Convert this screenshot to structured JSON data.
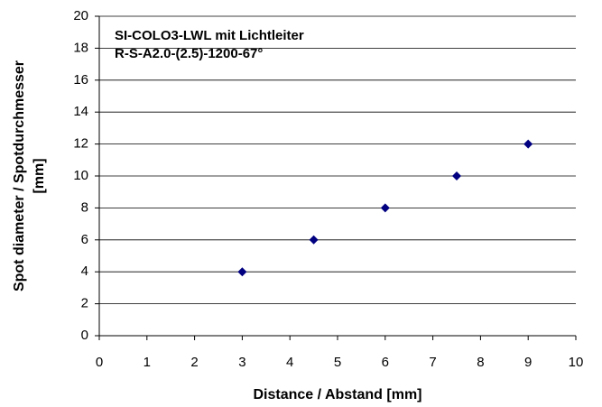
{
  "chart_data": {
    "type": "scatter",
    "annotation": [
      "SI-COLO3-LWL  mit Lichtleiter",
      "R-S-A2.0-(2.5)-1200-67°"
    ],
    "xlabel": "Distance / Abstand [mm]",
    "ylabel": [
      "Spot diameter / Spotdurchmesser",
      "[mm]"
    ],
    "series": [
      {
        "color": "#000080",
        "x": [
          3,
          4.5,
          6,
          7.5,
          9
        ],
        "values": [
          4,
          6,
          8,
          10,
          12
        ]
      }
    ],
    "xlim": [
      0,
      10
    ],
    "xticks": [
      0,
      1,
      2,
      3,
      4,
      5,
      6,
      7,
      8,
      9,
      10
    ],
    "ylim": [
      0,
      20
    ],
    "yticks": [
      0,
      2,
      4,
      6,
      8,
      10,
      12,
      14,
      16,
      18,
      20
    ],
    "grid": true
  }
}
